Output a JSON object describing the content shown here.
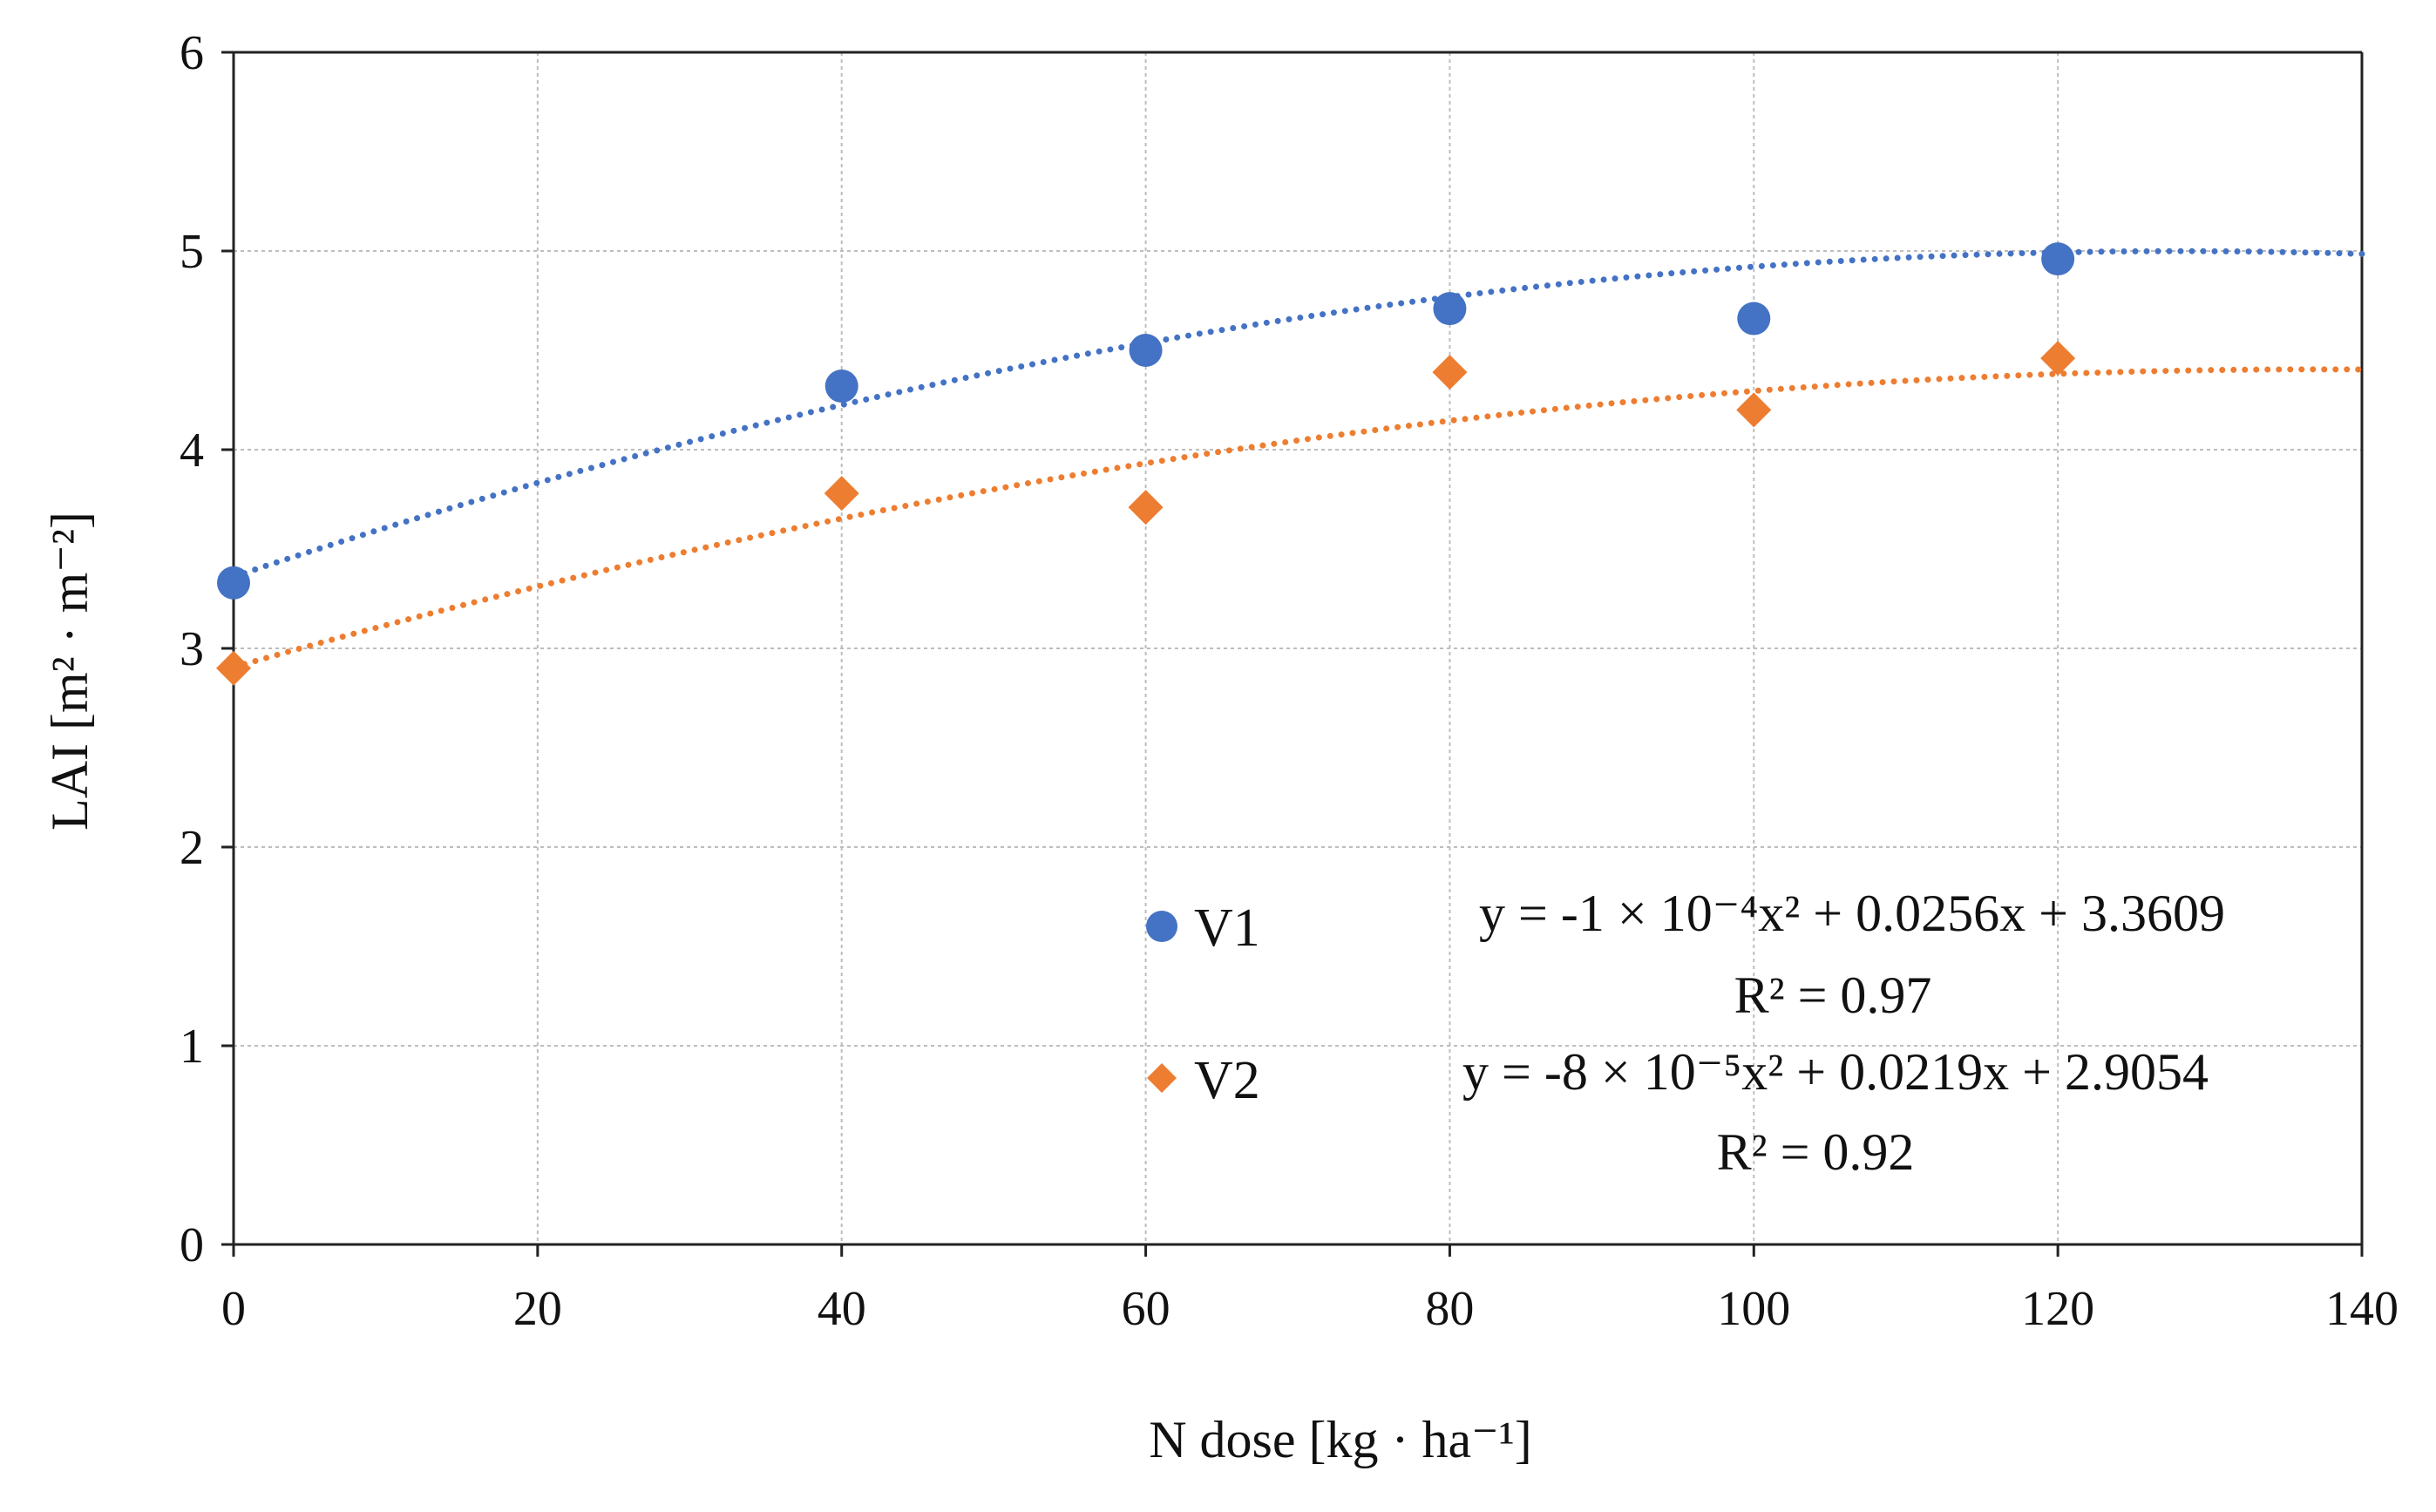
{
  "chart_data": {
    "type": "scatter",
    "title": "",
    "xlabel": "N dose [kg · ha⁻¹]",
    "ylabel": "LAI [m² · m⁻²]",
    "xlim": [
      0,
      140
    ],
    "ylim": [
      0,
      6
    ],
    "xticks": [
      "0",
      "20",
      "40",
      "60",
      "80",
      "100",
      "120",
      "140"
    ],
    "yticks": [
      "0",
      "1",
      "2",
      "3",
      "4",
      "5",
      "6"
    ],
    "grid": true,
    "legend_position": "bottom-right",
    "series": [
      {
        "name": "V1",
        "marker": "circle",
        "color": "#4472C4",
        "x": [
          0,
          40,
          60,
          80,
          100,
          120
        ],
        "y": [
          3.33,
          4.32,
          4.5,
          4.71,
          4.66,
          4.96
        ],
        "trendline": {
          "type": "polynomial",
          "coefficients": [
            -0.0001,
            0.0256,
            3.3609
          ],
          "equation": "y = -1 × 10⁻⁴x² + 0.0256x + 3.3609",
          "r2": "R² = 0.97"
        }
      },
      {
        "name": "V2",
        "marker": "diamond",
        "color": "#ED7D31",
        "x": [
          0,
          40,
          60,
          80,
          100,
          120
        ],
        "y": [
          2.9,
          3.78,
          3.71,
          4.39,
          4.2,
          4.46
        ],
        "trendline": {
          "type": "polynomial",
          "coefficients": [
            -8e-05,
            0.0219,
            2.9054
          ],
          "equation": "y = -8 × 10⁻⁵x² + 0.0219x + 2.9054",
          "r2": "R² = 0.92"
        }
      }
    ]
  }
}
